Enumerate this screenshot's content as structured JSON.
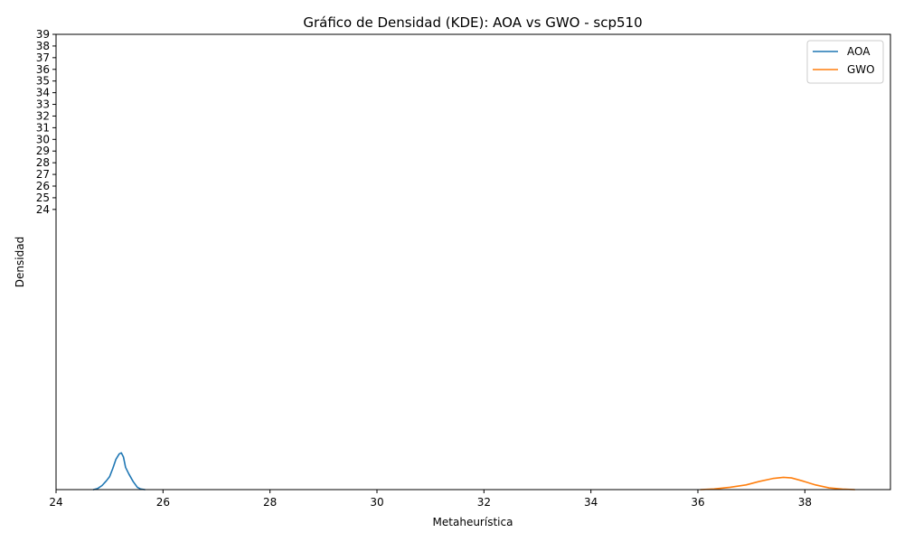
{
  "chart_data": {
    "type": "line",
    "title": "Gráfico de Densidad (KDE): AOA vs GWO - scp510",
    "xlabel": "Metaheurística",
    "ylabel": "Densidad",
    "xlim": [
      24,
      39.6
    ],
    "ylim": [
      0,
      39
    ],
    "x_ticks": [
      24,
      26,
      28,
      30,
      32,
      34,
      36,
      38
    ],
    "y_ticks": [
      24,
      25,
      26,
      27,
      28,
      29,
      30,
      31,
      32,
      33,
      34,
      35,
      36,
      37,
      38,
      39
    ],
    "grid": false,
    "legend_position": "top-right",
    "series": [
      {
        "name": "AOA",
        "color": "#1f77b4",
        "x": [
          24.7,
          24.78,
          24.86,
          24.94,
          25.0,
          25.06,
          25.12,
          25.18,
          25.22,
          25.26,
          25.3,
          25.36,
          25.44,
          25.52,
          25.58,
          25.66
        ],
        "y": [
          0.0,
          0.1,
          0.35,
          0.75,
          1.1,
          1.8,
          2.6,
          3.05,
          3.15,
          2.8,
          1.9,
          1.35,
          0.7,
          0.2,
          0.05,
          0.0
        ]
      },
      {
        "name": "GWO",
        "color": "#ff7f0e",
        "x": [
          36.05,
          36.3,
          36.6,
          36.9,
          37.15,
          37.4,
          37.6,
          37.75,
          37.95,
          38.2,
          38.45,
          38.7,
          38.93
        ],
        "y": [
          0.0,
          0.05,
          0.2,
          0.4,
          0.7,
          0.95,
          1.05,
          1.0,
          0.75,
          0.4,
          0.15,
          0.04,
          0.0
        ]
      }
    ]
  }
}
